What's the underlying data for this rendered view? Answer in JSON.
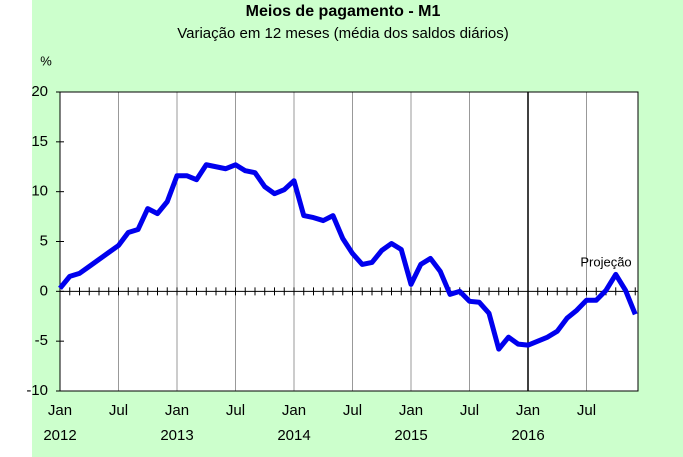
{
  "chart_data": {
    "type": "line",
    "title": "Meios de pagamento - M1",
    "subtitle": "Variação em 12 meses (média dos saldos diários)",
    "ylabel": "%",
    "annotation": {
      "text": "Projeção",
      "x": "2016-09"
    },
    "forecast_start": "2016-01",
    "x": [
      "2012-01",
      "2012-02",
      "2012-03",
      "2012-04",
      "2012-05",
      "2012-06",
      "2012-07",
      "2012-08",
      "2012-09",
      "2012-10",
      "2012-11",
      "2012-12",
      "2013-01",
      "2013-02",
      "2013-03",
      "2013-04",
      "2013-05",
      "2013-06",
      "2013-07",
      "2013-08",
      "2013-09",
      "2013-10",
      "2013-11",
      "2013-12",
      "2014-01",
      "2014-02",
      "2014-03",
      "2014-04",
      "2014-05",
      "2014-06",
      "2014-07",
      "2014-08",
      "2014-09",
      "2014-10",
      "2014-11",
      "2014-12",
      "2015-01",
      "2015-02",
      "2015-03",
      "2015-04",
      "2015-05",
      "2015-06",
      "2015-07",
      "2015-08",
      "2015-09",
      "2015-10",
      "2015-11",
      "2015-12",
      "2016-01",
      "2016-02",
      "2016-03",
      "2016-04",
      "2016-05",
      "2016-06",
      "2016-07",
      "2016-08",
      "2016-09",
      "2016-10",
      "2016-11",
      "2016-12"
    ],
    "series": [
      {
        "name": "M1",
        "color": "#0000ee",
        "values": [
          0.3,
          1.5,
          1.8,
          2.5,
          3.2,
          3.9,
          4.6,
          5.9,
          6.2,
          8.3,
          7.8,
          9.0,
          11.6,
          11.6,
          11.2,
          12.7,
          12.5,
          12.3,
          12.7,
          12.1,
          11.9,
          10.5,
          9.8,
          10.2,
          11.1,
          7.6,
          7.4,
          7.1,
          7.6,
          5.3,
          3.8,
          2.7,
          2.9,
          4.1,
          4.8,
          4.2,
          0.7,
          2.7,
          3.3,
          2.0,
          -0.3,
          0.0,
          -1.0,
          -1.1,
          -2.2,
          -5.8,
          -4.6,
          -5.3,
          -5.4,
          -5.0,
          -4.6,
          -4.0,
          -2.7,
          -1.9,
          -0.9,
          -0.9,
          0.1,
          1.7,
          0.1,
          -2.3
        ]
      }
    ],
    "ylim": [
      -10,
      20
    ],
    "yticks": [
      -10,
      -5,
      0,
      5,
      10,
      15,
      20
    ],
    "xticks": [
      {
        "value": "2012-01",
        "label": "Jan"
      },
      {
        "value": "2012-07",
        "label": "Jul"
      },
      {
        "value": "2013-01",
        "label": "Jan"
      },
      {
        "value": "2013-07",
        "label": "Jul"
      },
      {
        "value": "2014-01",
        "label": "Jan"
      },
      {
        "value": "2014-07",
        "label": "Jul"
      },
      {
        "value": "2015-01",
        "label": "Jan"
      },
      {
        "value": "2015-07",
        "label": "Jul"
      },
      {
        "value": "2016-01",
        "label": "Jan"
      },
      {
        "value": "2016-07",
        "label": "Jul"
      }
    ],
    "xyears": [
      {
        "value": "2012-01",
        "label": "2012"
      },
      {
        "value": "2013-01",
        "label": "2013"
      },
      {
        "value": "2014-01",
        "label": "2014"
      },
      {
        "value": "2015-01",
        "label": "2015"
      },
      {
        "value": "2016-01",
        "label": "2016"
      }
    ],
    "grid": true
  }
}
